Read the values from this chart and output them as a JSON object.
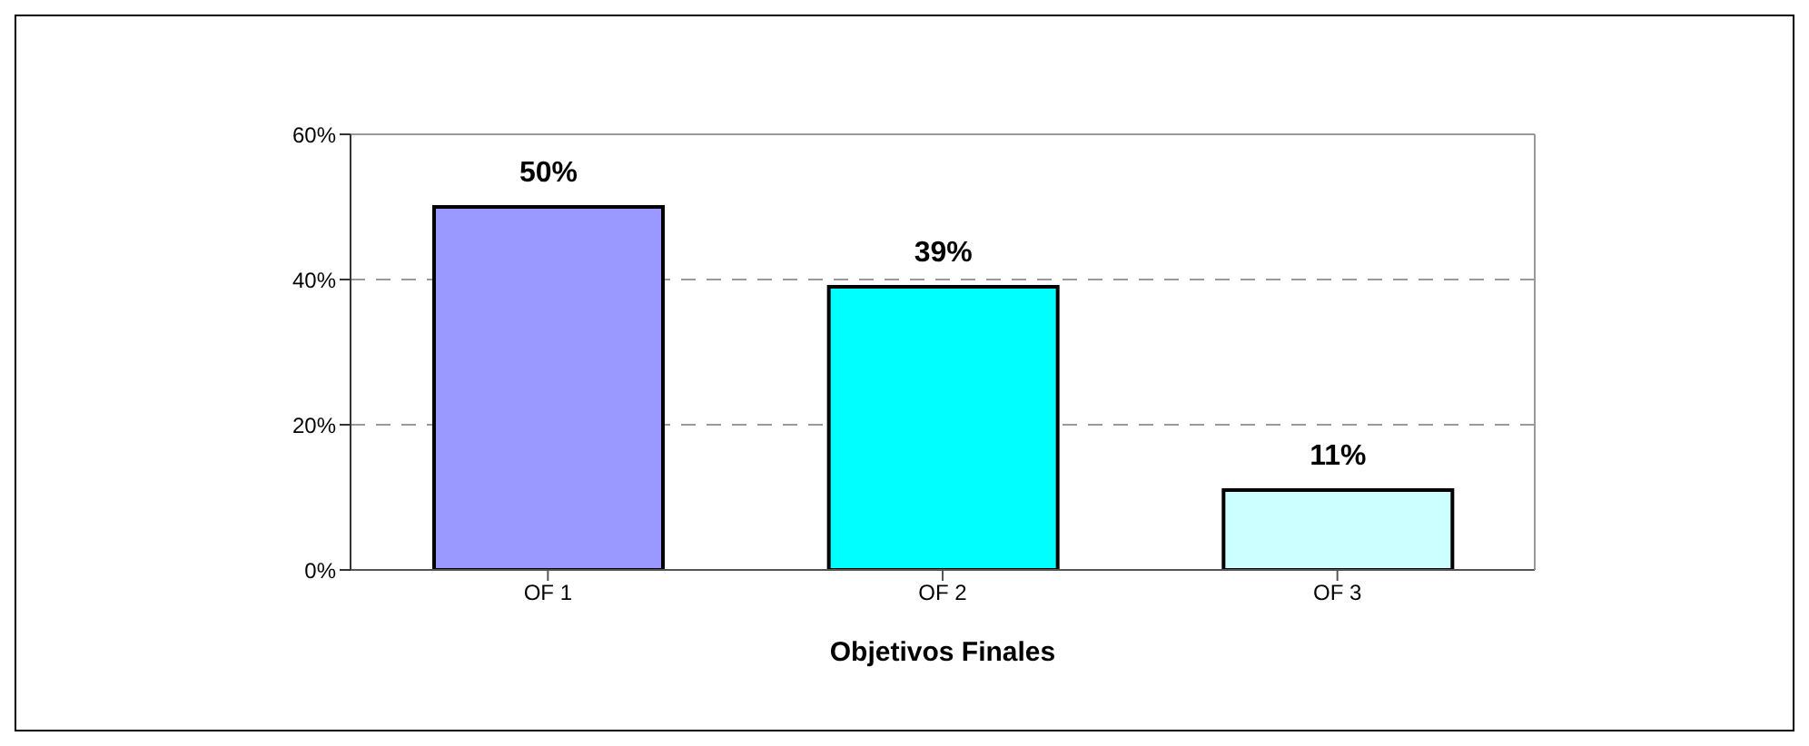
{
  "chart_data": {
    "type": "bar",
    "xlabel": "Objetivos Finales",
    "categories": [
      "OF 1",
      "OF 2",
      "OF 3"
    ],
    "values": [
      50,
      39,
      11
    ],
    "colors": [
      "#9999ff",
      "#00ffff",
      "#ccffff"
    ],
    "value_labels": [
      "50%",
      "39%",
      "11%"
    ],
    "ylim": [
      0,
      60
    ],
    "yticks": [
      {
        "value": 0,
        "label": "0%"
      },
      {
        "value": 20,
        "label": "20%"
      },
      {
        "value": 40,
        "label": "40%"
      },
      {
        "value": 60,
        "label": "60%"
      }
    ],
    "grid": "y",
    "legend": false
  }
}
